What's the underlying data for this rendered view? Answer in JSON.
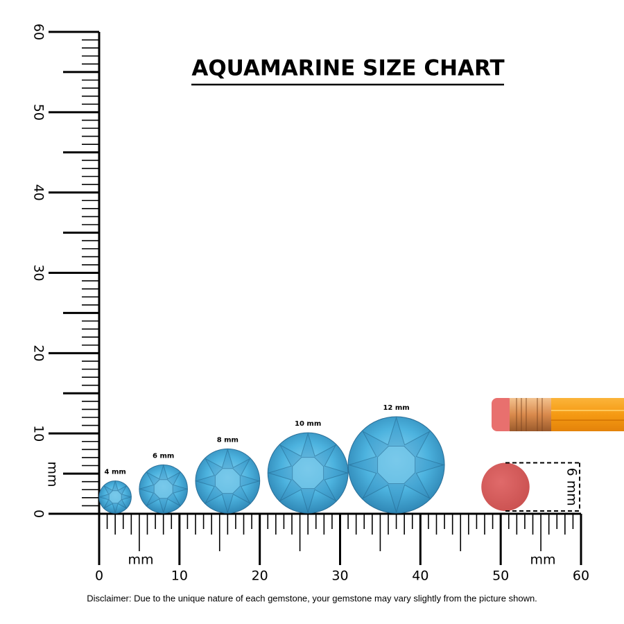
{
  "title": "AQUAMARINE SIZE CHART",
  "ruler": {
    "unit": "mm",
    "range": [
      0,
      60
    ],
    "ticks": [
      0,
      10,
      20,
      30,
      40,
      50,
      60
    ]
  },
  "gems": [
    {
      "label": "4 mm",
      "size": 4
    },
    {
      "label": "6 mm",
      "size": 6
    },
    {
      "label": "8 mm",
      "size": 8
    },
    {
      "label": "10 mm",
      "size": 10
    },
    {
      "label": "12 mm",
      "size": 12
    }
  ],
  "reference": {
    "label": "6 mm",
    "size": 6
  },
  "disclaimer": "Disclaimer: Due to the unique nature of each gemstone, your gemstone may vary slightly from the picture shown."
}
